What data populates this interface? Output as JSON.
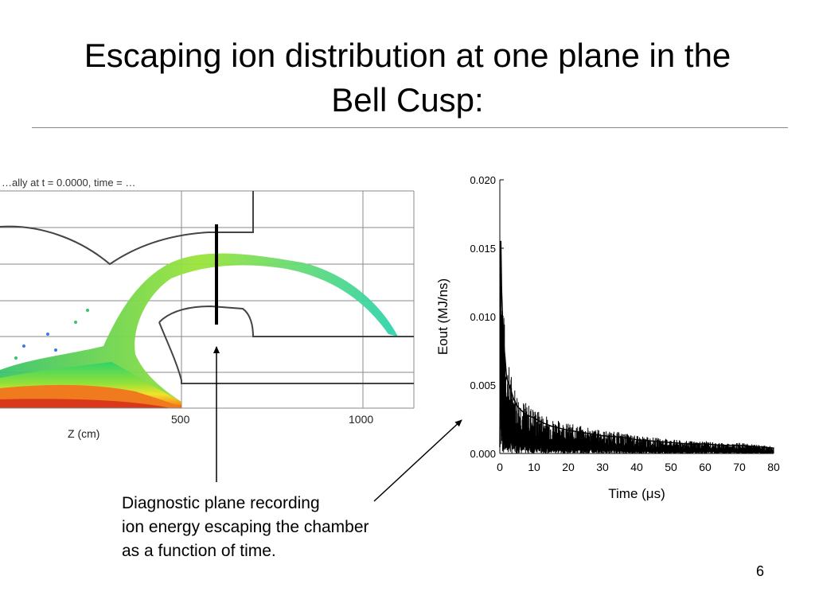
{
  "slide": {
    "title_line1": "Escaping ion distribution at one plane in the",
    "title_line2": "Bell Cusp:",
    "page_number": "6"
  },
  "simulation": {
    "header_text": "…ally at t = 0.0000, time = …",
    "x_axis_label": "Z (cm)",
    "tick_labels": [
      "500",
      "1000"
    ]
  },
  "caption": {
    "line1": "Diagnostic plane recording",
    "line2": "ion energy escaping the chamber",
    "line3": "as a function of time."
  },
  "chart_data": {
    "type": "line",
    "title": "",
    "xlabel": "Time (μs)",
    "ylabel": "Eout (MJ/ns)",
    "xlim": [
      0,
      80
    ],
    "ylim": [
      0,
      0.02
    ],
    "x_ticks": [
      0,
      10,
      20,
      30,
      40,
      50,
      60,
      70,
      80
    ],
    "x_tick_labels": [
      "0",
      "10",
      "20",
      "30",
      "40",
      "50",
      "60",
      "70",
      "80"
    ],
    "y_ticks": [
      0,
      0.005,
      0.01,
      0.015,
      0.02
    ],
    "y_tick_labels": [
      "0.000",
      "0.005",
      "0.010",
      "0.015",
      "0.020"
    ],
    "series": [
      {
        "x": [
          0,
          0.3,
          0.5,
          0.8,
          1,
          1.5,
          2,
          3,
          4,
          5,
          6,
          8,
          10,
          12,
          15,
          20,
          25,
          30,
          35,
          40,
          45,
          50,
          55,
          60,
          65,
          70,
          75,
          80
        ],
        "y": [
          0.0005,
          0.0155,
          0.012,
          0.01,
          0.0085,
          0.007,
          0.0055,
          0.0048,
          0.004,
          0.0035,
          0.0032,
          0.0028,
          0.0026,
          0.0023,
          0.002,
          0.0017,
          0.0015,
          0.0013,
          0.0012,
          0.001,
          0.0009,
          0.0008,
          0.0007,
          0.0007,
          0.0006,
          0.0006,
          0.0005,
          0.0004
        ]
      }
    ],
    "grid": false,
    "legend": "none"
  },
  "colors": {
    "plot_line": "#000000",
    "grid": "#888888",
    "chamber_outline": "#444444"
  }
}
